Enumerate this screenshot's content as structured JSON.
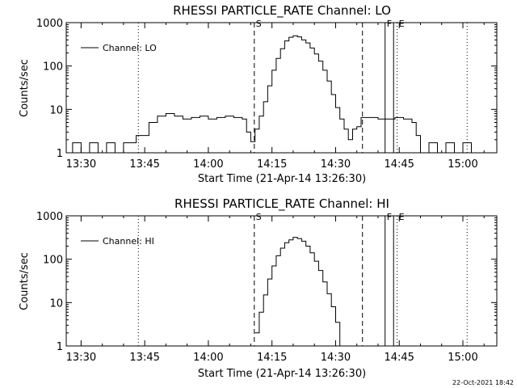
{
  "chart_data": [
    {
      "type": "line",
      "title": "RHESSI PARTICLE_RATE Channel: LO",
      "xlabel": "Start Time (21-Apr-14 13:26:30)",
      "ylabel": "Counts/sec",
      "y_scale": "log",
      "ylim": [
        1,
        1000
      ],
      "xlim": [
        "13:26:30",
        "15:08:00"
      ],
      "x_ticks": [
        "13:30",
        "13:45",
        "14:00",
        "14:15",
        "14:30",
        "14:45",
        "15:00"
      ],
      "y_ticks": [
        "1",
        "10",
        "100",
        "1000"
      ],
      "legend": {
        "entries": [
          "Channel: LO"
        ],
        "placement": "top-left"
      },
      "series": [
        {
          "name": "Channel: LO",
          "x": [
            "13:26:30",
            "13:28:00",
            "13:30:00",
            "13:32:00",
            "13:34:00",
            "13:36:00",
            "13:38:00",
            "13:40:00",
            "13:42:00",
            "13:43:00",
            "13:44:00",
            "13:46:00",
            "13:48:00",
            "13:50:00",
            "13:52:00",
            "13:54:00",
            "13:56:00",
            "13:58:00",
            "14:00:00",
            "14:02:00",
            "14:04:00",
            "14:06:00",
            "14:08:00",
            "14:09:00",
            "14:10:00",
            "14:11:00",
            "14:12:00",
            "14:13:00",
            "14:14:00",
            "14:15:00",
            "14:16:00",
            "14:17:00",
            "14:18:00",
            "14:19:00",
            "14:20:00",
            "14:21:00",
            "14:22:00",
            "14:23:00",
            "14:24:00",
            "14:25:00",
            "14:26:00",
            "14:27:00",
            "14:28:00",
            "14:29:00",
            "14:30:00",
            "14:31:00",
            "14:32:00",
            "14:33:00",
            "14:34:00",
            "14:35:00",
            "14:36:00",
            "14:38:00",
            "14:40:00",
            "14:42:00",
            "14:44:00",
            "14:46:00",
            "14:48:00",
            "14:49:00",
            "14:50:00",
            "14:52:00",
            "14:54:00",
            "14:56:00",
            "14:58:00",
            "15:00:00",
            "15:02:00"
          ],
          "values": [
            1,
            1.7,
            1,
            1.7,
            1,
            1.7,
            1,
            1.7,
            1.7,
            2.5,
            2.5,
            5,
            7,
            8,
            7,
            6,
            6.5,
            7,
            6,
            6.5,
            7,
            6.5,
            6,
            3,
            1.8,
            3.5,
            7,
            15,
            35,
            80,
            150,
            250,
            380,
            460,
            500,
            470,
            400,
            340,
            260,
            190,
            130,
            80,
            45,
            22,
            11,
            6,
            3.5,
            2,
            3.5,
            4,
            6.5,
            6.5,
            6,
            6,
            6.5,
            6,
            5,
            2.5,
            1,
            1.7,
            1,
            1.7,
            1,
            1.7,
            1
          ]
        }
      ],
      "markers": [
        {
          "label": "S",
          "x": "14:10:50",
          "style": "dashed"
        },
        {
          "label": "",
          "x": "14:36:20",
          "style": "dashed"
        },
        {
          "label": "F",
          "x": "14:41:40",
          "style": "solid"
        },
        {
          "label": "",
          "x": "14:43:40",
          "style": "solid"
        },
        {
          "label": "E",
          "x": "14:44:30",
          "style": "dotted"
        },
        {
          "label": "",
          "x": "13:43:30",
          "style": "dotted"
        },
        {
          "label": "",
          "x": "15:01:00",
          "style": "dotted"
        }
      ]
    },
    {
      "type": "line",
      "title": "RHESSI PARTICLE_RATE Channel: HI",
      "xlabel": "Start Time (21-Apr-14 13:26:30)",
      "ylabel": "Counts/sec",
      "y_scale": "log",
      "ylim": [
        1,
        1000
      ],
      "xlim": [
        "13:26:30",
        "15:08:00"
      ],
      "x_ticks": [
        "13:30",
        "13:45",
        "14:00",
        "14:15",
        "14:30",
        "14:45",
        "15:00"
      ],
      "y_ticks": [
        "1",
        "10",
        "100",
        "1000"
      ],
      "legend": {
        "entries": [
          "Channel: HI"
        ],
        "placement": "top-left"
      },
      "series": [
        {
          "name": "Channel: HI",
          "x": [
            "14:11:00",
            "14:12:00",
            "14:13:00",
            "14:14:00",
            "14:15:00",
            "14:16:00",
            "14:17:00",
            "14:18:00",
            "14:19:00",
            "14:20:00",
            "14:21:00",
            "14:22:00",
            "14:23:00",
            "14:24:00",
            "14:25:00",
            "14:26:00",
            "14:27:00",
            "14:28:00",
            "14:29:00",
            "14:30:00",
            "14:31:00"
          ],
          "values": [
            2,
            6,
            15,
            35,
            70,
            120,
            180,
            240,
            280,
            320,
            300,
            260,
            200,
            140,
            90,
            55,
            30,
            16,
            8,
            3.5,
            1
          ]
        }
      ],
      "markers": [
        {
          "label": "S",
          "x": "14:10:50",
          "style": "dashed"
        },
        {
          "label": "",
          "x": "14:36:20",
          "style": "dashed"
        },
        {
          "label": "F",
          "x": "14:41:40",
          "style": "solid"
        },
        {
          "label": "",
          "x": "14:43:40",
          "style": "solid"
        },
        {
          "label": "E",
          "x": "14:44:30",
          "style": "dotted"
        },
        {
          "label": "",
          "x": "13:43:30",
          "style": "dotted"
        },
        {
          "label": "",
          "x": "15:01:00",
          "style": "dotted"
        }
      ]
    }
  ],
  "footer": {
    "timestamp": "22-Oct-2021 18:42"
  }
}
